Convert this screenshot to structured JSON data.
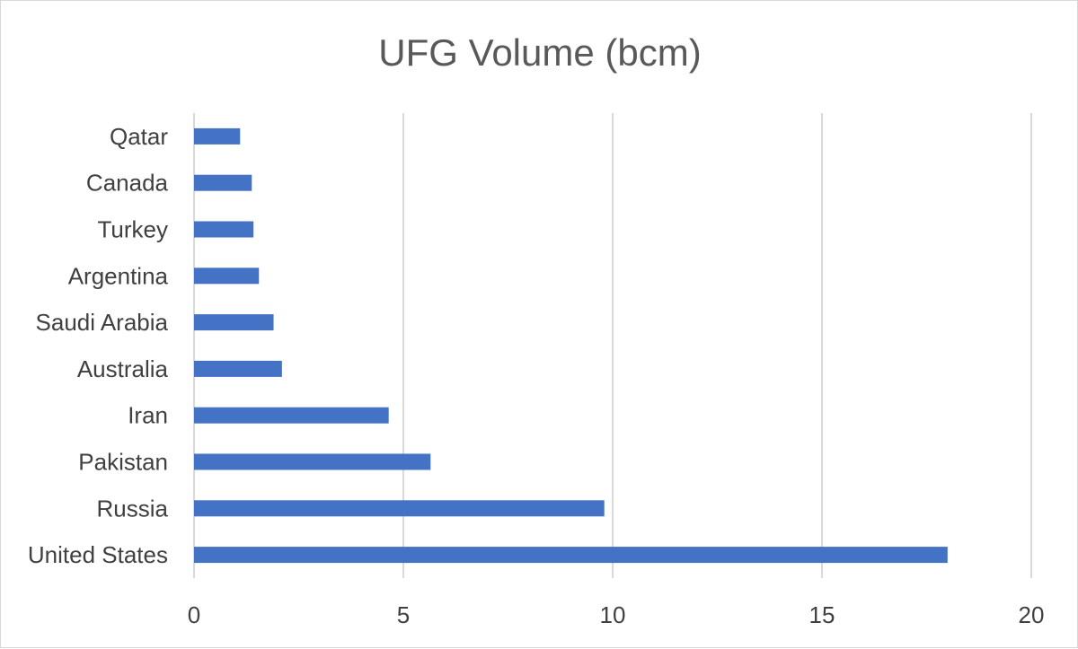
{
  "chart_data": {
    "type": "bar",
    "orientation": "horizontal",
    "title": "UFG Volume (bcm)",
    "xlabel": "",
    "ylabel": "",
    "categories": [
      "United States",
      "Russia",
      "Pakistan",
      "Iran",
      "Australia",
      "Saudi Arabia",
      "Argentina",
      "Turkey",
      "Canada",
      "Qatar"
    ],
    "values": [
      18.0,
      9.8,
      5.65,
      4.65,
      2.1,
      1.9,
      1.55,
      1.42,
      1.38,
      1.1
    ],
    "xlim": [
      0,
      20
    ],
    "xticks": [
      "0",
      "5",
      "10",
      "15",
      "20"
    ],
    "grid": true,
    "legend": "none",
    "bar_color": "#4472C4"
  }
}
